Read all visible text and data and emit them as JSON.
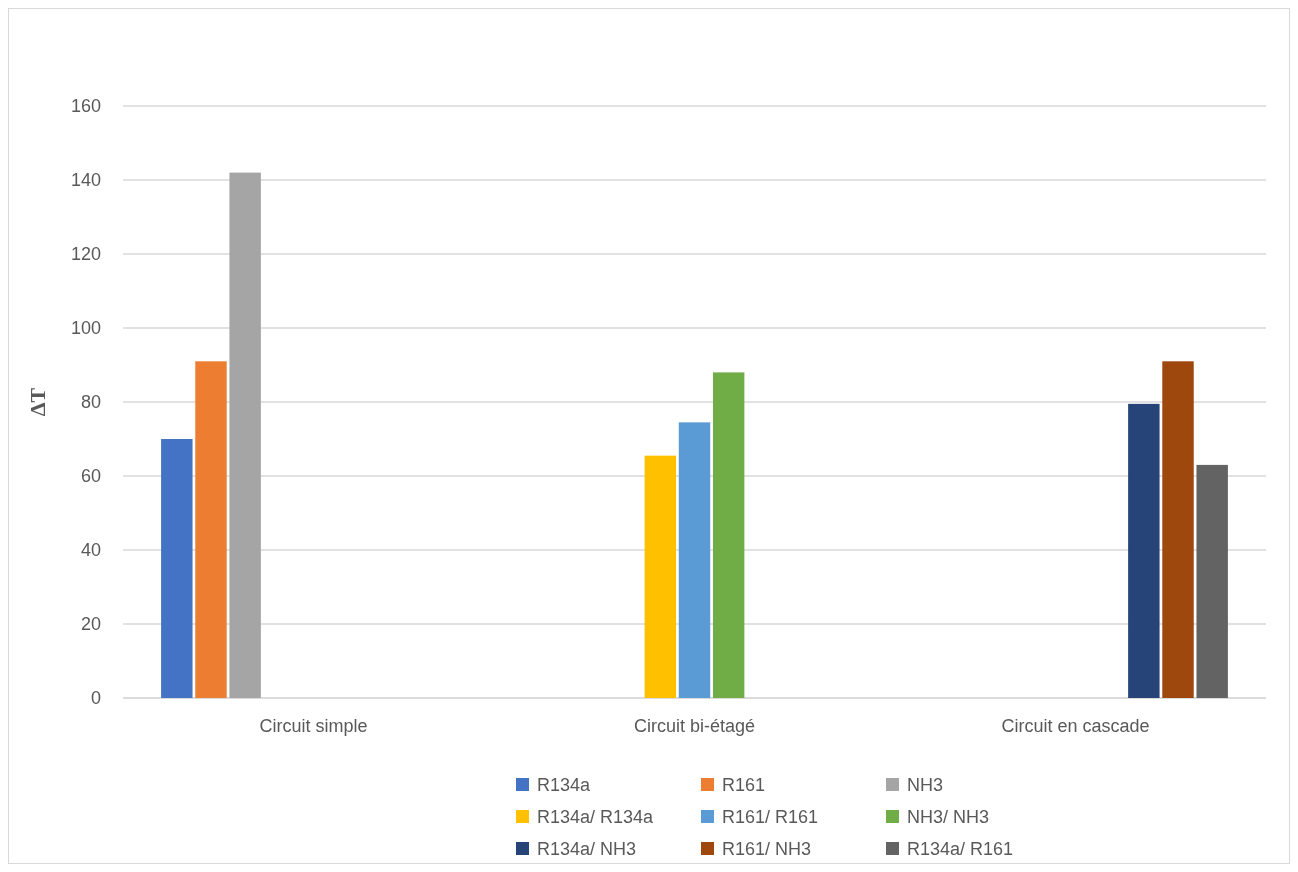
{
  "chart_data": {
    "type": "bar",
    "ylabel": "ΔT",
    "categories": [
      "Circuit simple",
      "Circuit bi-étagé",
      "Circuit en cascade"
    ],
    "ylim": [
      0,
      160
    ],
    "yticks": [
      0,
      20,
      40,
      60,
      80,
      100,
      120,
      140,
      160
    ],
    "grid": "y",
    "legend": "bottom",
    "series": [
      {
        "name": "R134a",
        "color": "#4472c4",
        "values": [
          70,
          null,
          null
        ]
      },
      {
        "name": "R161",
        "color": "#ed7d31",
        "values": [
          91,
          null,
          null
        ]
      },
      {
        "name": "NH3",
        "color": "#a5a5a5",
        "values": [
          142,
          null,
          null
        ]
      },
      {
        "name": "R134a/ R134a",
        "color": "#ffc000",
        "values": [
          null,
          65.5,
          null
        ]
      },
      {
        "name": "R161/ R161",
        "color": "#5b9bd5",
        "values": [
          null,
          74.5,
          null
        ]
      },
      {
        "name": "NH3/ NH3",
        "color": "#70ad47",
        "values": [
          null,
          88,
          null
        ]
      },
      {
        "name": "R134a/ NH3",
        "color": "#264478",
        "values": [
          null,
          null,
          79.5
        ]
      },
      {
        "name": "R161/ NH3",
        "color": "#9e480e",
        "values": [
          null,
          null,
          91
        ]
      },
      {
        "name": "R134a/ R161",
        "color": "#636363",
        "values": [
          null,
          null,
          63
        ]
      }
    ]
  }
}
